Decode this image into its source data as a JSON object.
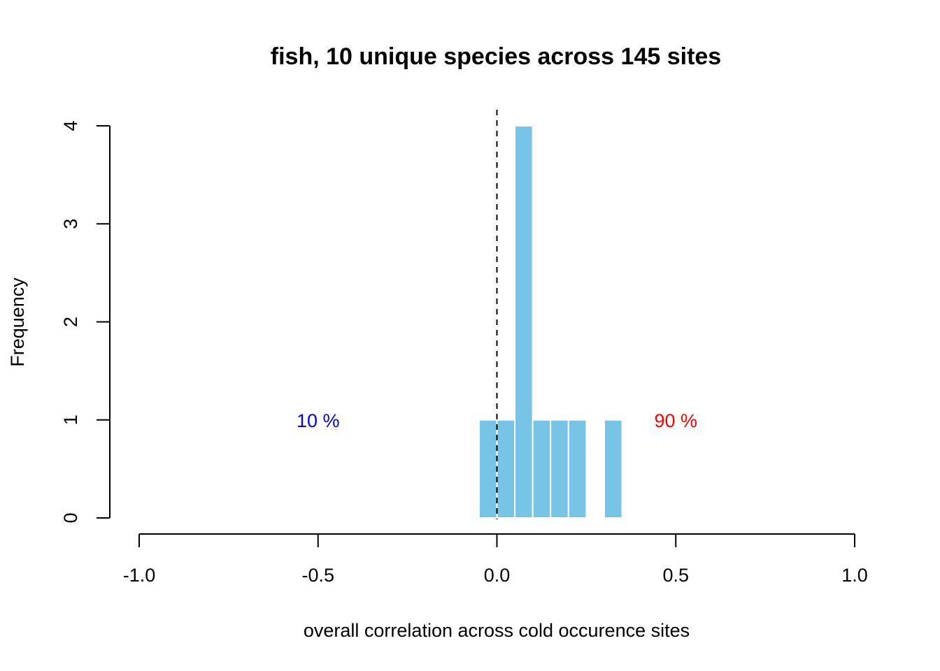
{
  "chart_data": {
    "type": "bar",
    "title": "fish, 10 unique species across 145 sites",
    "xlabel": "overall correlation across cold occurence sites",
    "ylabel": "Frequency",
    "xlim": [
      -1.0,
      1.0
    ],
    "ylim": [
      0,
      4
    ],
    "x_ticks": [
      "-1.0",
      "-0.5",
      "0.0",
      "0.5",
      "1.0"
    ],
    "y_ticks": [
      "0",
      "1",
      "2",
      "3",
      "4"
    ],
    "bin_width": 0.05,
    "bins": [
      {
        "start": -0.05,
        "end": 0.0,
        "count": 1
      },
      {
        "start": 0.0,
        "end": 0.05,
        "count": 1
      },
      {
        "start": 0.05,
        "end": 0.1,
        "count": 4
      },
      {
        "start": 0.1,
        "end": 0.15,
        "count": 1
      },
      {
        "start": 0.15,
        "end": 0.2,
        "count": 1
      },
      {
        "start": 0.2,
        "end": 0.25,
        "count": 1
      },
      {
        "start": 0.25,
        "end": 0.3,
        "count": 0
      },
      {
        "start": 0.3,
        "end": 0.35,
        "count": 1
      }
    ],
    "bar_color": "#77c4e6",
    "reference_line": {
      "x": 0.0,
      "style": "dashed"
    },
    "annotations": [
      {
        "text": "10 %",
        "x": -0.5,
        "y": 1,
        "color": "#0000ff"
      },
      {
        "text": "90 %",
        "x": 0.5,
        "y": 1,
        "color": "#ff0000"
      }
    ],
    "grid": false,
    "legend": "none"
  }
}
